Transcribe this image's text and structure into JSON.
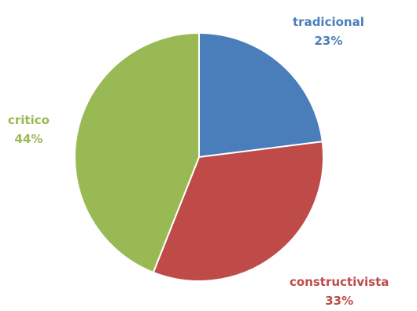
{
  "chart_data": {
    "type": "pie",
    "categories": [
      "tradicional",
      "constructivista",
      "critico"
    ],
    "values": [
      23,
      33,
      44
    ],
    "value_labels": [
      "23%",
      "33%",
      "44%"
    ],
    "colors": [
      "#4a7ebb",
      "#be4b48",
      "#98b954"
    ],
    "start": "12 o'clock",
    "direction": "clockwise",
    "legend": "none",
    "title": ""
  }
}
